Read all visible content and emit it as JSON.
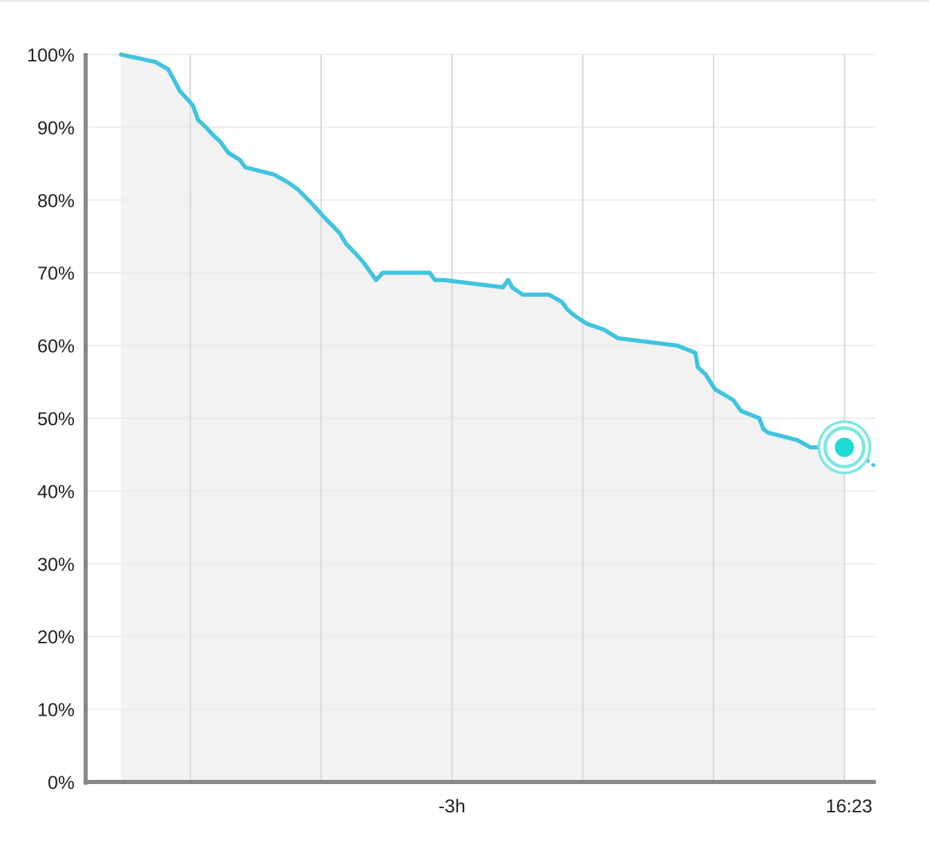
{
  "chart_data": {
    "type": "area",
    "title": "",
    "xlabel": "",
    "ylabel": "",
    "ylim": [
      0,
      100
    ],
    "y_ticks": [
      "0%",
      "10%",
      "20%",
      "30%",
      "40%",
      "50%",
      "60%",
      "70%",
      "80%",
      "90%",
      "100%"
    ],
    "y_tick_values": [
      0,
      10,
      20,
      30,
      40,
      50,
      60,
      70,
      80,
      90,
      100
    ],
    "x_unit": "hours relative to now",
    "xlim": [
      -5.8,
      0.24
    ],
    "x_gridlines": [
      -5,
      -4,
      -3,
      -2,
      -1,
      0
    ],
    "x_tick_labels": [
      {
        "x": -3,
        "label": "-3h"
      },
      {
        "x": 0,
        "label": "16:23"
      }
    ],
    "grid": true,
    "series": [
      {
        "points": [
          [
            -5.53,
            100
          ],
          [
            -5.27,
            99
          ],
          [
            -5.17,
            98
          ],
          [
            -5.08,
            95
          ],
          [
            -4.98,
            93
          ],
          [
            -4.94,
            91
          ],
          [
            -4.88,
            90
          ],
          [
            -4.83,
            89
          ],
          [
            -4.77,
            88
          ],
          [
            -4.71,
            86.5
          ],
          [
            -4.62,
            85.5
          ],
          [
            -4.58,
            84.5
          ],
          [
            -4.36,
            83.5
          ],
          [
            -4.26,
            82.5
          ],
          [
            -4.18,
            81.5
          ],
          [
            -4.07,
            79.5
          ],
          [
            -3.97,
            77.5
          ],
          [
            -3.86,
            75.5
          ],
          [
            -3.81,
            74
          ],
          [
            -3.73,
            72.5
          ],
          [
            -3.68,
            71.5
          ],
          [
            -3.62,
            70
          ],
          [
            -3.58,
            69
          ],
          [
            -3.53,
            70
          ],
          [
            -3.17,
            70
          ],
          [
            -3.13,
            69
          ],
          [
            -3.06,
            69
          ],
          [
            -2.61,
            68
          ],
          [
            -2.57,
            69
          ],
          [
            -2.54,
            68
          ],
          [
            -2.46,
            67
          ],
          [
            -2.26,
            67
          ],
          [
            -2.16,
            66
          ],
          [
            -2.12,
            65
          ],
          [
            -2.07,
            64.2
          ],
          [
            -1.97,
            63
          ],
          [
            -1.84,
            62.2
          ],
          [
            -1.73,
            61
          ],
          [
            -1.28,
            60
          ],
          [
            -1.14,
            59
          ],
          [
            -1.12,
            57
          ],
          [
            -1.06,
            56
          ],
          [
            -0.99,
            54
          ],
          [
            -0.85,
            52.5
          ],
          [
            -0.79,
            51
          ],
          [
            -0.65,
            50
          ],
          [
            -0.62,
            48.5
          ],
          [
            -0.58,
            48
          ],
          [
            -0.36,
            47
          ],
          [
            -0.26,
            46
          ],
          [
            0,
            46
          ]
        ]
      }
    ],
    "projection": {
      "style": "dotted",
      "points": [
        [
          0,
          46
        ],
        [
          0.24,
          43.3
        ]
      ]
    },
    "current_point": {
      "x": 0,
      "y": 46
    },
    "colors": {
      "line": "#40c4e0",
      "fill": "#f2f2f2",
      "marker": "#1ed9d4",
      "marker_ring": "#7fe6e4",
      "axis": "#888888",
      "grid": "#ececec"
    }
  }
}
